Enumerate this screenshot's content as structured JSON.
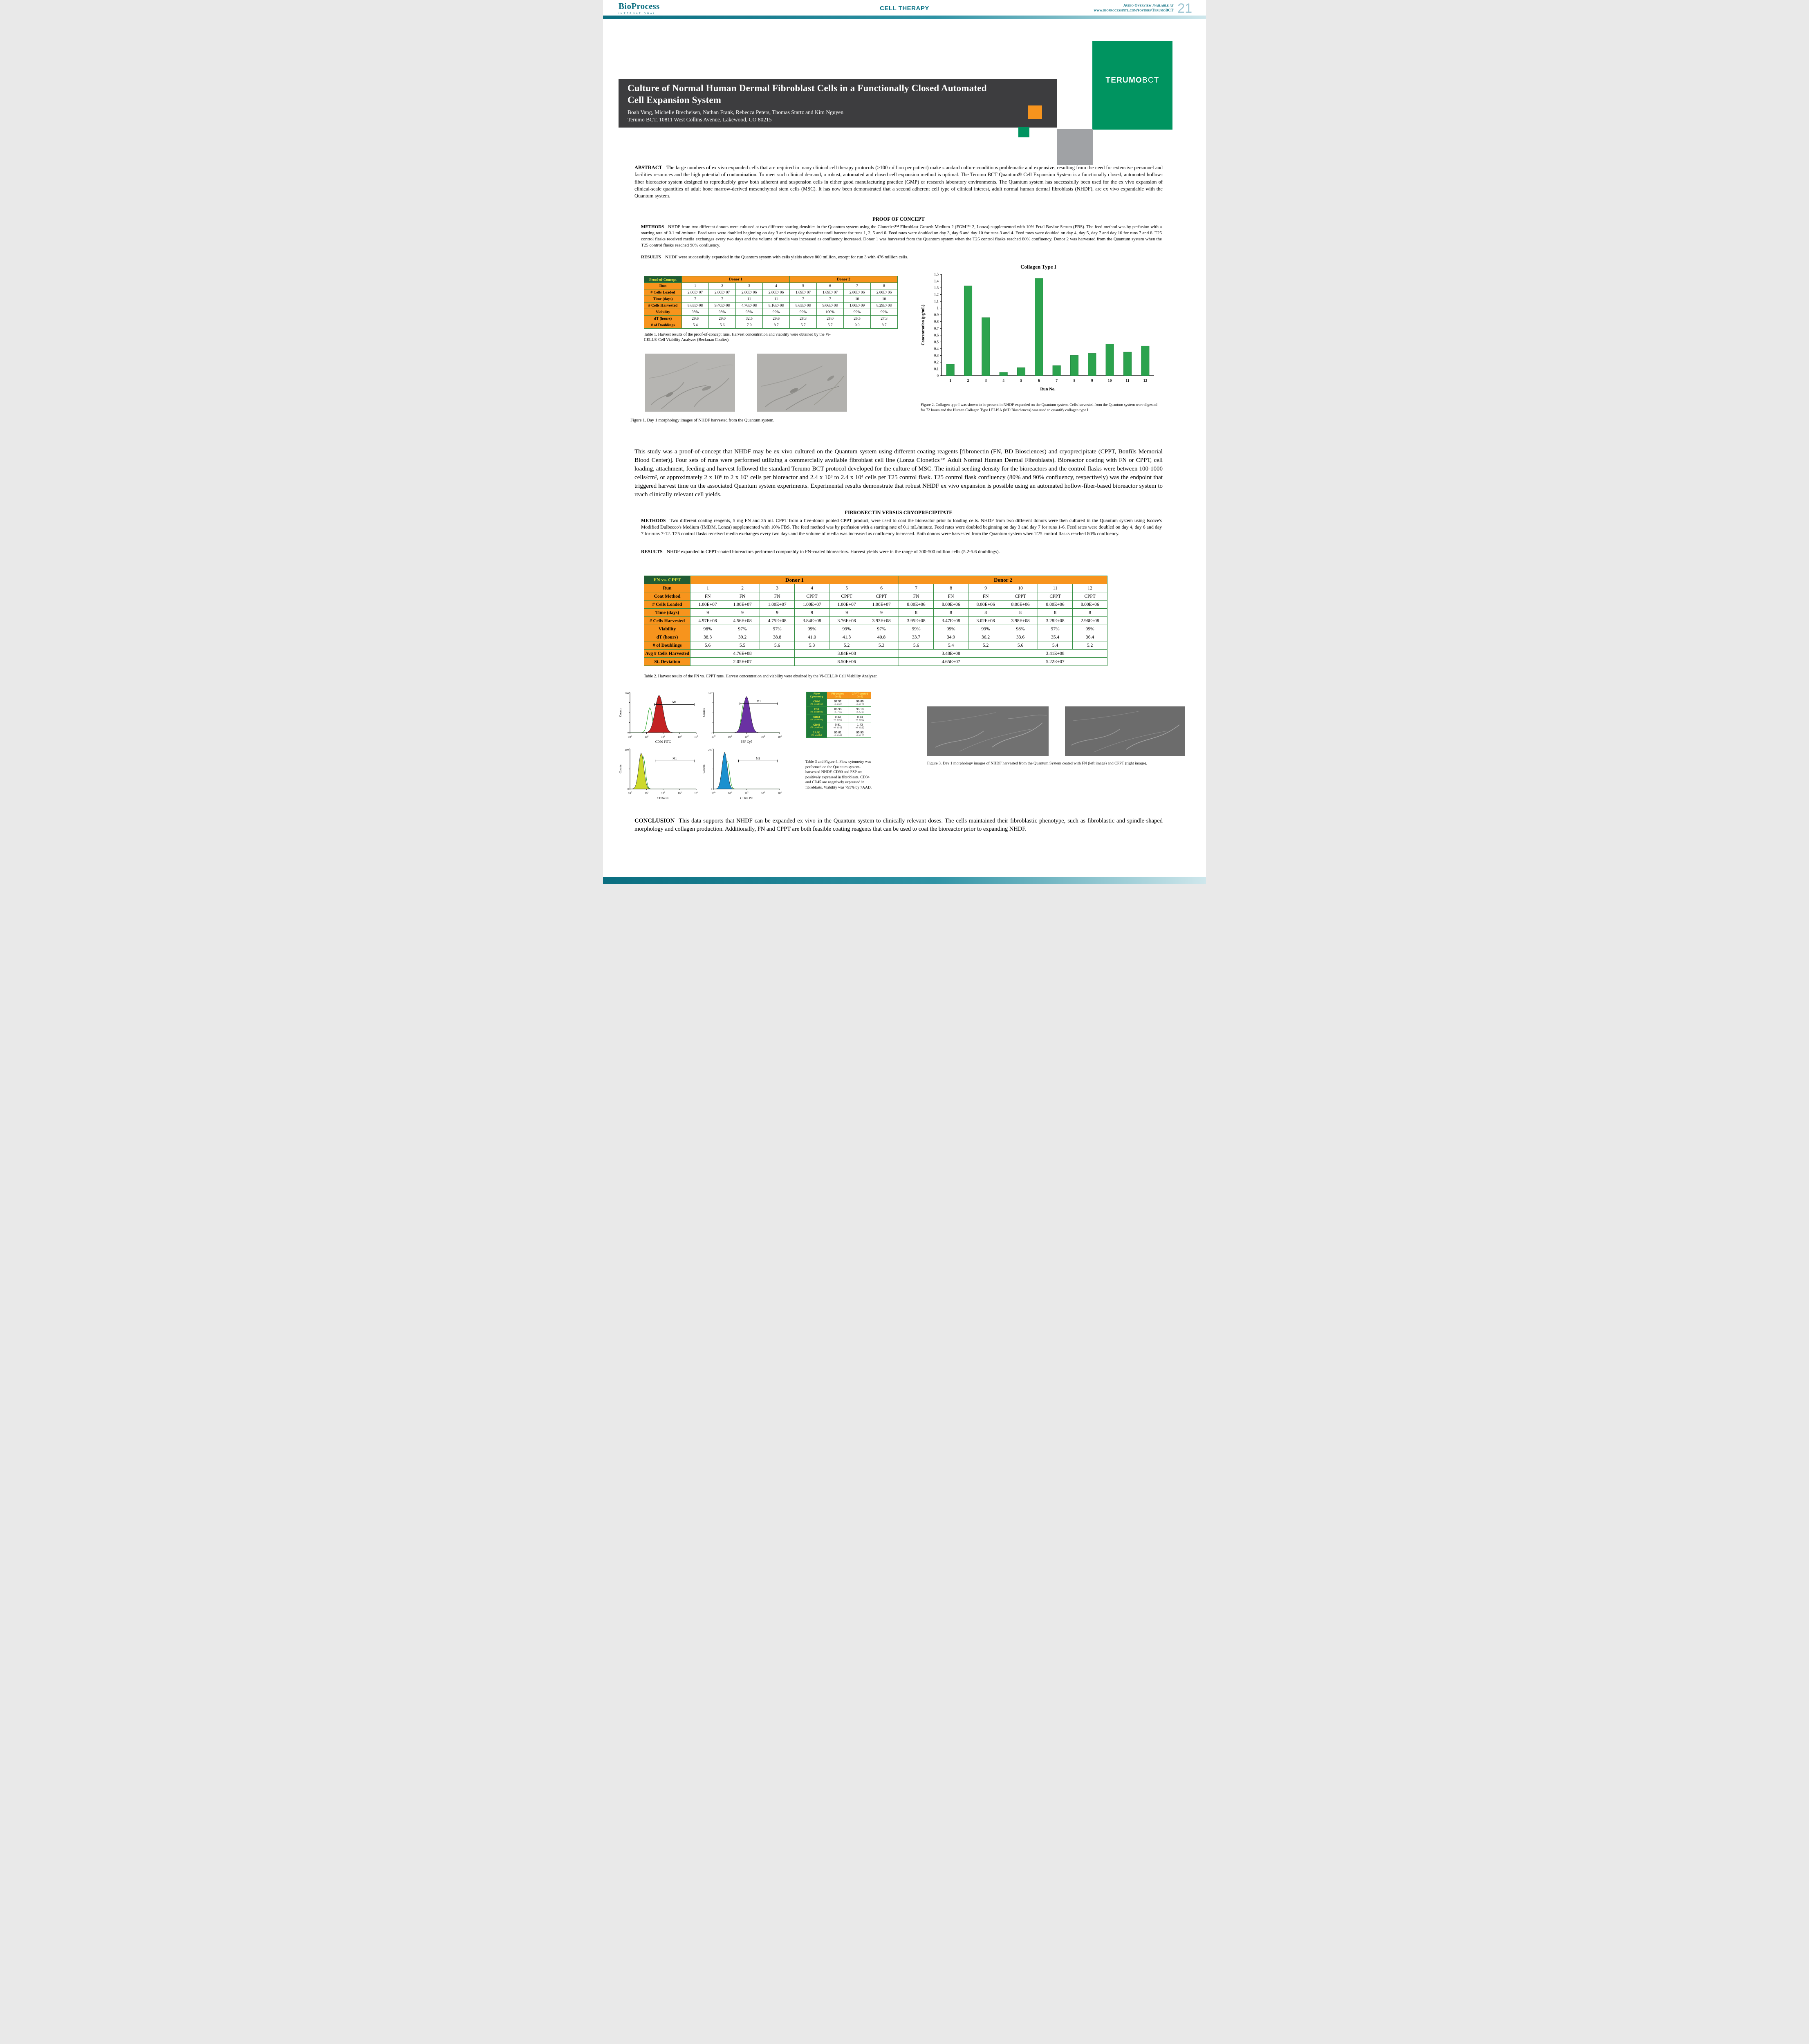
{
  "header": {
    "brand_name": "BioProcess",
    "brand_sub": "INTERNATIONAL",
    "section_title": "CELL THERAPY",
    "audio_line1": "Audio Overview available at",
    "audio_line2": "www.bioprocessintl.com/posters/TerumoBCT",
    "page_number": "21"
  },
  "masthead": {
    "title_line1": "Culture of Normal Human Dermal Fibroblast Cells in a Functionally Closed Automated",
    "title_line2": "Cell Expansion System",
    "authors": "Boah Vang, Michelle Brecheisen, Nathan Frank, Rebecca Peters, Thomas Startz and Kim Nguyen",
    "affiliation": "Terumo BCT, 10811 West Collins Avenue, Lakewood, CO 80215",
    "logo_main": "TERUMO",
    "logo_sub": "BCT"
  },
  "abstract": {
    "label": "ABSTRACT",
    "text": "The large numbers of ex vivo expanded cells that are required in many clinical cell therapy protocols (>100 million per patient) make standard culture conditions problematic and expensive, resulting from the need for extensive personnel and facilities resources and the high potential of contamination. To meet such clinical demand, a robust, automated and closed cell expansion method is optimal. The Terumo BCT Quantum® Cell Expansion System is a functionally closed, automated hollow-fiber bioreactor system designed to reproducibly grow both adherent and suspension cells in either good manufacturing practice (GMP) or research laboratory environments. The Quantum system has successfully been used for the ex vivo expansion of clinical-scale quantities of adult bone marrow-derived mesenchymal stem cells (MSC). It has now been demonstrated that a second adherent cell type of clinical interest, adult normal human dermal fibroblasts (NHDF), are ex vivo expandable with the Quantum system."
  },
  "proof_of_concept": {
    "heading": "PROOF OF CONCEPT",
    "methods_label": "METHODS",
    "methods_text": "NHDF from two different donors were cultured at two different starting densities in the Quantum system using the Clonetics™ Fibroblast Growth Medium-2 (FGM™-2, Lonza) supplemented with 10% Fetal Bovine Serum (FBS). The feed method was by perfusion with a starting rate of 0.1 mL/minute. Feed rates were doubled beginning on day 3 and every day thereafter until harvest for runs 1, 2, 5 and 6. Feed rates were doubled on day 3, day 6 and day 10 for runs 3 and 4. Feed rates were doubled on day 4, day 5, day 7 and day 10 for runs 7 and 8. T25 control flasks received media exchanges every two days and the volume of media was increased as confluency increased. Donor 1 was harvested from the Quantum system when the T25 control flasks reached 80% confluency. Donor 2 was harvested from the Quantum system when the T25 control flasks reached 90% confluency.",
    "results_label": "RESULTS",
    "results_text": "NHDF were successfully expanded in the Quantum system with cells yields above 800 million, except for run 3 with 476 million cells."
  },
  "table1": {
    "corner": "Proof-of-Concept",
    "groups": [
      {
        "label": "Donor 1",
        "span": 4
      },
      {
        "label": "Donor 2",
        "span": 4
      }
    ],
    "rows": [
      {
        "label": "Run",
        "values": [
          "1",
          "2",
          "3",
          "4",
          "5",
          "6",
          "7",
          "8"
        ]
      },
      {
        "label": "# Cells Loaded",
        "values": [
          "2.00E+07",
          "2.00E+07",
          "2.00E+06",
          "2.00E+06",
          "1.69E+07",
          "1.69E+07",
          "2.00E+06",
          "2.00E+06"
        ]
      },
      {
        "label": "Time (days)",
        "values": [
          "7",
          "7",
          "11",
          "11",
          "7",
          "7",
          "10",
          "10"
        ]
      },
      {
        "label": "# Cells Harvested",
        "values": [
          "8.63E+08",
          "9.40E+08",
          "4.76E+08",
          "8.16E+08",
          "8.63E+08",
          "9.06E+08",
          "1.00E+09",
          "8.29E+08"
        ]
      },
      {
        "label": "Viability",
        "values": [
          "98%",
          "98%",
          "98%",
          "99%",
          "99%",
          "100%",
          "99%",
          "99%"
        ]
      },
      {
        "label": "dT (hours)",
        "values": [
          "29.6",
          "29.0",
          "32.5",
          "29.6",
          "28.3",
          "28.0",
          "26.5",
          "27.3"
        ]
      },
      {
        "label": "# of Doublings",
        "values": [
          "5.4",
          "5.6",
          "7.9",
          "8.7",
          "5.7",
          "5.7",
          "9.0",
          "8.7"
        ]
      }
    ],
    "caption": "Table 1. Harvest results of the proof-of-concept runs. Harvest concentration and viability were obtained by the Vi-CELL® Cell Viability Analyzer (Beckman Coulter)."
  },
  "figure1": {
    "caption": "Figure 1. Day 1 morphology images of NHDF harvested from the Quantum system."
  },
  "chart_data": {
    "type": "bar",
    "title": "Collagen Type I",
    "xlabel": "Run No.",
    "ylabel": "Concentration (µg/mL)",
    "categories": [
      "1",
      "2",
      "3",
      "4",
      "5",
      "6",
      "7",
      "8",
      "9",
      "10",
      "11",
      "12"
    ],
    "values": [
      0.17,
      1.33,
      0.86,
      0.05,
      0.12,
      1.44,
      0.15,
      0.3,
      0.33,
      0.47,
      0.35,
      0.44
    ],
    "ylim": [
      0,
      1.5
    ],
    "ytick_step": 0.1,
    "bar_color": "#2ca34e",
    "grid": false,
    "legend": false
  },
  "figure2": {
    "caption": "Figure 2. Collagen type I was shown to be present in NHDF expanded on the Quantum system. Cells harvested from the Quantum system were digested for 72 hours and the Human Collagen Type I ELISA (MD Biosciences) was used to quantify collagen type I."
  },
  "mid_paragraph": "This study was a proof-of-concept that NHDF may be ex vivo cultured on the Quantum system using different coating reagents [fibronectin (FN, BD Biosciences) and cryoprecipitate (CPPT, Bonfils Memorial Blood Center)]. Four sets of runs were performed utilizing a commercially available fibroblast cell line (Lonza Clonetics™ Adult Normal Human Dermal Fibroblasts). Bioreactor coating with FN or CPPT, cell loading, attachment, feeding and harvest followed the standard Terumo BCT protocol developed for the culture of MSC. The initial seeding density for the bioreactors and the control flasks were between 100-1000 cells/cm², or approximately 2 x 10⁶ to 2 x 10⁷ cells per bioreactor and 2.4 x 10³ to 2.4 x 10⁴ cells per T25 control flask. T25 control flask confluency (80% and 90% confluency, respectively) was the endpoint that triggered harvest time on the associated Quantum system experiments. Experimental results demonstrate that robust NHDF ex vivo expansion is possible using an automated hollow-fiber-based bioreactor system to reach clinically relevant cell yields.",
  "fibronectin_section": {
    "heading": "FIBRONECTIN VERSUS CRYOPRECIPITATE",
    "methods_label": "METHODS",
    "methods_text": "Two different coating reagents, 5 mg FN and 25 mL CPPT from a five-donor pooled CPPT product, were used to coat the bioreactor prior to loading cells. NHDF from two different donors were then cultured in the Quantum system using Iscove's Modified Dulbecco's Medium (IMDM, Lonza) supplemented with 10% FBS. The feed method was by perfusion with a starting rate of 0.1 mL/minute. Feed rates were doubled beginning on day 3 and day 7 for runs 1-6. Feed rates were doubled on day 4, day 6 and day 7 for runs 7-12. T25 control flasks received media exchanges every two days and the volume of media was increased as confluency increased. Both donors were harvested from the Quantum system when T25 control flasks reached 80% confluency.",
    "results_label": "RESULTS",
    "results_text": "NHDF expanded in CPPT-coated bioreactors performed comparably to FN-coated bioreactors. Harvest yields were in the range of 300-500 million cells (5.2-5.6 doublings)."
  },
  "table2": {
    "corner": "FN vs. CPPT",
    "groups": [
      {
        "label": "Donor 1",
        "span": 6
      },
      {
        "label": "Donor 2",
        "span": 6
      }
    ],
    "rows": [
      {
        "label": "Run",
        "values": [
          "1",
          "2",
          "3",
          "4",
          "5",
          "6",
          "7",
          "8",
          "9",
          "10",
          "11",
          "12"
        ]
      },
      {
        "label": "Coat Method",
        "values": [
          "FN",
          "FN",
          "FN",
          "CPPT",
          "CPPT",
          "CPPT",
          "FN",
          "FN",
          "FN",
          "CPPT",
          "CPPT",
          "CPPT"
        ]
      },
      {
        "label": "# Cells Loaded",
        "values": [
          "1.00E+07",
          "1.00E+07",
          "1.00E+07",
          "1.00E+07",
          "1.00E+07",
          "1.00E+07",
          "8.00E+06",
          "8.00E+06",
          "8.00E+06",
          "8.00E+06",
          "8.00E+06",
          "8.00E+06"
        ]
      },
      {
        "label": "Time (days)",
        "values": [
          "9",
          "9",
          "9",
          "9",
          "9",
          "9",
          "8",
          "8",
          "8",
          "8",
          "8",
          "8"
        ]
      },
      {
        "label": "# Cells Harvested",
        "values": [
          "4.97E+08",
          "4.56E+08",
          "4.75E+08",
          "3.84E+08",
          "3.76E+08",
          "3.93E+08",
          "3.95E+08",
          "3.47E+08",
          "3.02E+08",
          "3.98E+08",
          "3.28E+08",
          "2.96E+08"
        ]
      },
      {
        "label": "Viability",
        "values": [
          "98%",
          "97%",
          "97%",
          "99%",
          "99%",
          "97%",
          "99%",
          "99%",
          "99%",
          "98%",
          "97%",
          "99%"
        ]
      },
      {
        "label": "dT (hours)",
        "values": [
          "38.3",
          "39.2",
          "38.8",
          "41.0",
          "41.3",
          "40.8",
          "33.7",
          "34.9",
          "36.2",
          "33.6",
          "35.4",
          "36.4"
        ]
      },
      {
        "label": "# of Doublings",
        "values": [
          "5.6",
          "5.5",
          "5.6",
          "5.3",
          "5.2",
          "5.3",
          "5.6",
          "5.4",
          "5.2",
          "5.6",
          "5.4",
          "5.2"
        ]
      }
    ],
    "merged_rows": [
      {
        "label": "Avg # Cells Harvested",
        "span": 3,
        "values": [
          "4.76E+08",
          "3.84E+08",
          "3.48E+08",
          "3.41E+08"
        ]
      },
      {
        "label": "St. Deviation",
        "span": 3,
        "values": [
          "2.05E+07",
          "8.50E+06",
          "4.65E+07",
          "5.22E+07"
        ]
      }
    ],
    "caption": "Table 2. Harvest results of the FN vs. CPPT runs. Harvest concentration and viability were obtained by the Vi-CELL® Cell Viability Analyzer."
  },
  "flow": {
    "ylabel": "Counts",
    "y_top_label": "200",
    "y_bottom_label": "0",
    "x_exponents": [
      0,
      1,
      2,
      3,
      4
    ],
    "plots": [
      {
        "xlabel": "CD90 FITC",
        "marker": "M1",
        "fill": "#c32222",
        "peak": 0.44,
        "pw": 0.085,
        "ph": 0.93,
        "gpeak": 0.3,
        "gw": 0.05,
        "gh": 0.62,
        "m1": [
          0.37,
          0.97
        ],
        "m1y": 0.3
      },
      {
        "xlabel": "FSP Cy5",
        "marker": "M1",
        "fill": "#6a31a3",
        "peak": 0.5,
        "pw": 0.075,
        "ph": 0.9,
        "gpeak": 0.46,
        "gw": 0.05,
        "gh": 0.75,
        "m1": [
          0.4,
          0.97
        ],
        "m1y": 0.28
      },
      {
        "xlabel": "CD34 PE",
        "marker": "M1",
        "fill": "#cdd92b",
        "peak": 0.17,
        "pw": 0.055,
        "ph": 0.9,
        "gpeak": 0.2,
        "gw": 0.045,
        "gh": 0.8,
        "m1": [
          0.38,
          0.97
        ],
        "m1y": 0.3
      },
      {
        "xlabel": "CD45 PE",
        "marker": "M1",
        "fill": "#1b90cf",
        "peak": 0.17,
        "pw": 0.055,
        "ph": 0.92,
        "gpeak": 0.21,
        "gw": 0.045,
        "gh": 0.7,
        "m1": [
          0.38,
          0.97
        ],
        "m1y": 0.3
      }
    ],
    "table": {
      "corner": [
        "Flow",
        "Cytometry"
      ],
      "columns": [
        [
          "FN-coated",
          "(n=3)"
        ],
        [
          "CPPT-coated",
          "(n=3)"
        ]
      ],
      "rows": [
        {
          "label": "CD90",
          "sub": "(% positive)",
          "fn": "97.52",
          "fn_err": "+/- 0.08",
          "cppt": "96.89",
          "cppt_err": "+/- 0.21"
        },
        {
          "label": "FSP",
          "sub": "(% positive)",
          "fn": "88.93",
          "fn_err": "+/- 7.67",
          "cppt": "93.13",
          "cppt_err": "+/- 5.15"
        },
        {
          "label": "CD34",
          "sub": "(% positive)",
          "fn": "0.33",
          "fn_err": "+/- 0.08",
          "cppt": "0.54",
          "cppt_err": "+/- 0.02"
        },
        {
          "label": "CD45",
          "sub": "(% positive)",
          "fn": "0.91",
          "fn_err": "+/- 0.46",
          "cppt": "1.43",
          "cppt_err": "+/- 0.82"
        },
        {
          "label": "7AAD",
          "sub": "(% viable)",
          "fn": "95.81",
          "fn_err": "+/- 0.41",
          "cppt": "95.93",
          "cppt_err": "+/- 0.25"
        }
      ]
    },
    "caption": "Table 3 and Figure 4. Flow cytometry was performed on the Quantum system-harvested NHDF. CD90 and FSP are positively expressed in fibroblasts. CD34 and CD45 are negatively expressed in fibroblasts. Viability was >95% by 7AAD."
  },
  "figure3": {
    "caption": "Figure 3. Day 1 morphology images of NHDF harvested from the Quantum System coated with FN (left image) and CPPT (right image)."
  },
  "conclusion": {
    "label": "CONCLUSION",
    "text": "This data supports that NHDF can be expanded ex vivo in the Quantum system to clinically relevant doses. The cells maintained their fibroblastic phenotype, such as fibroblastic and spindle-shaped morphology and collagen production. Additionally, FN and CPPT are both feasible coating reagents that can be used to coat the bioreactor prior to expanding NHDF."
  },
  "colors": {
    "teal": "#0a6e80",
    "terumo_green": "#009460",
    "orange": "#f7941d",
    "table_header_green": "#215c33",
    "table_border_green": "#2e8b3d",
    "bar_green": "#2ca34e",
    "charcoal": "#3d3d3f"
  }
}
